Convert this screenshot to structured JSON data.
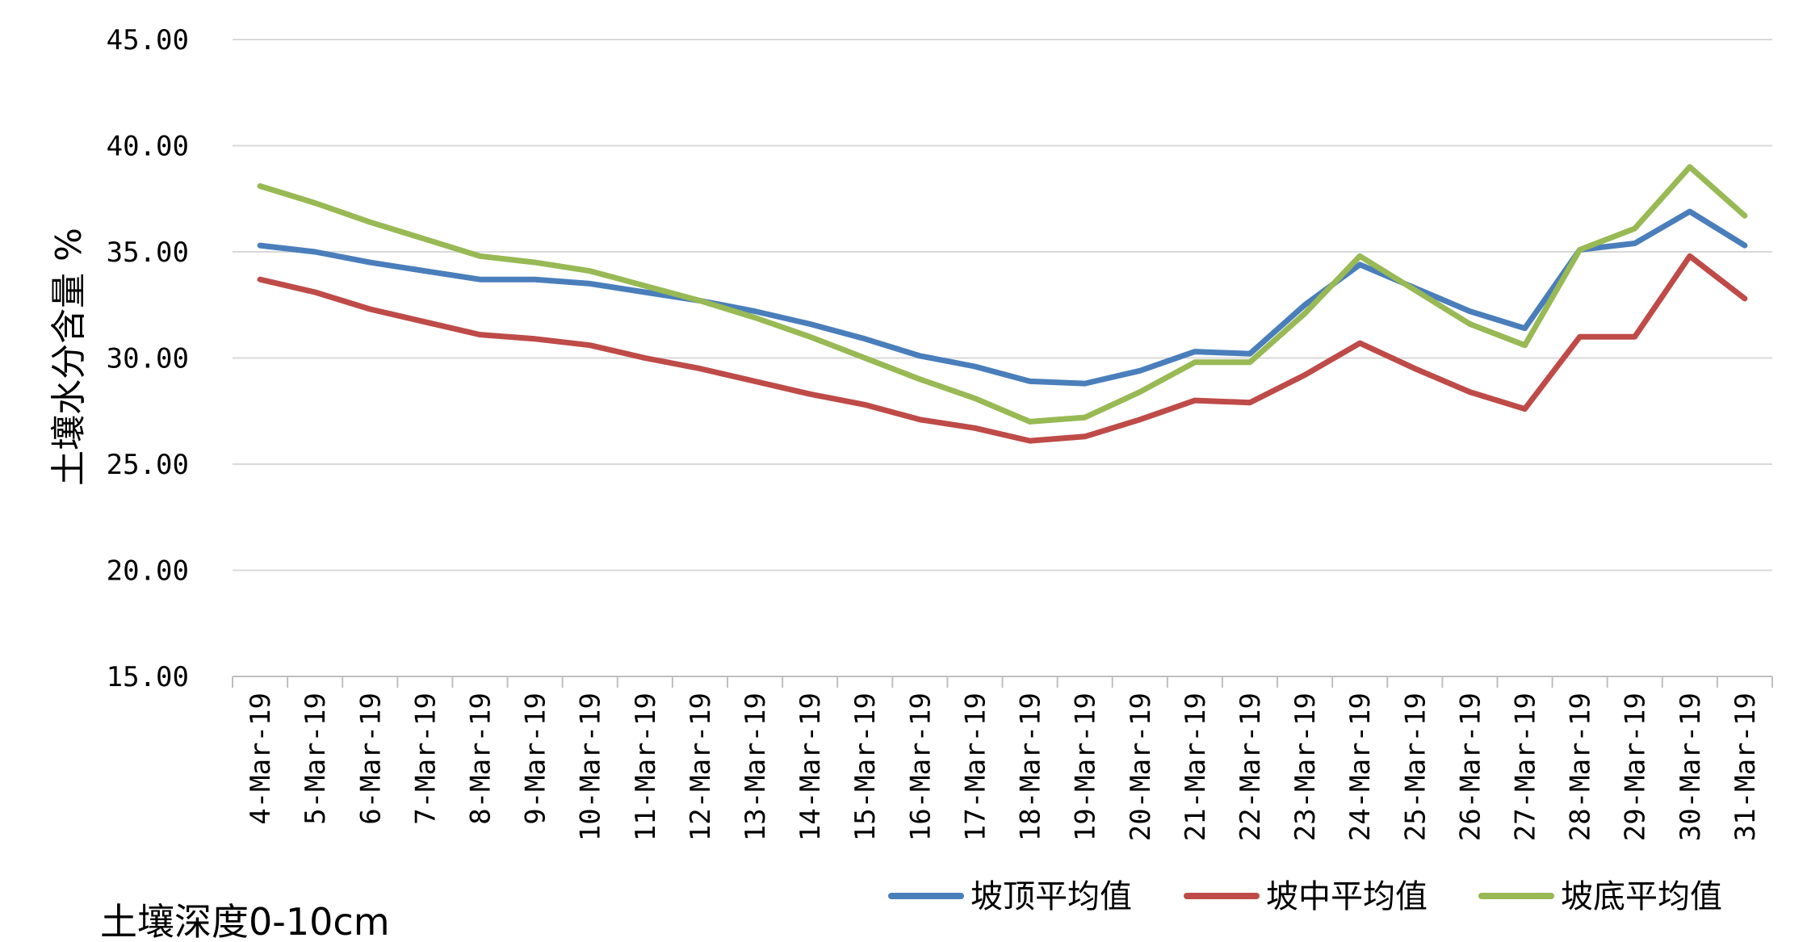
{
  "chart_data": {
    "type": "line",
    "title": "",
    "xlabel": "",
    "ylabel": "土壤水分含量 %",
    "ylim": [
      15,
      45
    ],
    "yticks": [
      "15.00",
      "20.00",
      "25.00",
      "30.00",
      "35.00",
      "40.00",
      "45.00"
    ],
    "ytick_values": [
      15,
      20,
      25,
      30,
      35,
      40,
      45
    ],
    "grid": true,
    "legend_position": "bottom-right",
    "annotation": "土壤深度0-10cm",
    "categories": [
      "4-Mar-19",
      "5-Mar-19",
      "6-Mar-19",
      "7-Mar-19",
      "8-Mar-19",
      "9-Mar-19",
      "10-Mar-19",
      "11-Mar-19",
      "12-Mar-19",
      "13-Mar-19",
      "14-Mar-19",
      "15-Mar-19",
      "16-Mar-19",
      "17-Mar-19",
      "18-Mar-19",
      "19-Mar-19",
      "20-Mar-19",
      "21-Mar-19",
      "22-Mar-19",
      "23-Mar-19",
      "24-Mar-19",
      "25-Mar-19",
      "26-Mar-19",
      "27-Mar-19",
      "28-Mar-19",
      "29-Mar-19",
      "30-Mar-19",
      "31-Mar-19"
    ],
    "series": [
      {
        "name": "坡顶平均值",
        "color": "#4a7ebb",
        "values": [
          35.3,
          35.0,
          34.5,
          34.1,
          33.7,
          33.7,
          33.5,
          33.1,
          32.7,
          32.2,
          31.6,
          30.9,
          30.1,
          29.6,
          28.9,
          28.8,
          29.4,
          30.3,
          30.2,
          32.5,
          34.4,
          33.3,
          32.2,
          31.4,
          35.1,
          35.4,
          36.9,
          35.3
        ]
      },
      {
        "name": "坡中平均值",
        "color": "#be4b48",
        "values": [
          33.7,
          33.1,
          32.3,
          31.7,
          31.1,
          30.9,
          30.6,
          30.0,
          29.5,
          28.9,
          28.3,
          27.8,
          27.1,
          26.7,
          26.1,
          26.3,
          27.1,
          28.0,
          27.9,
          29.2,
          30.7,
          29.5,
          28.4,
          27.6,
          31.0,
          31.0,
          34.8,
          32.8
        ]
      },
      {
        "name": "坡底平均值",
        "color": "#98b954",
        "values": [
          38.1,
          37.3,
          36.4,
          35.6,
          34.8,
          34.5,
          34.1,
          33.4,
          32.7,
          31.9,
          31.0,
          30.0,
          29.0,
          28.1,
          27.0,
          27.2,
          28.4,
          29.8,
          29.8,
          32.1,
          34.8,
          33.2,
          31.6,
          30.6,
          35.1,
          36.1,
          39.0,
          36.7
        ]
      }
    ]
  }
}
